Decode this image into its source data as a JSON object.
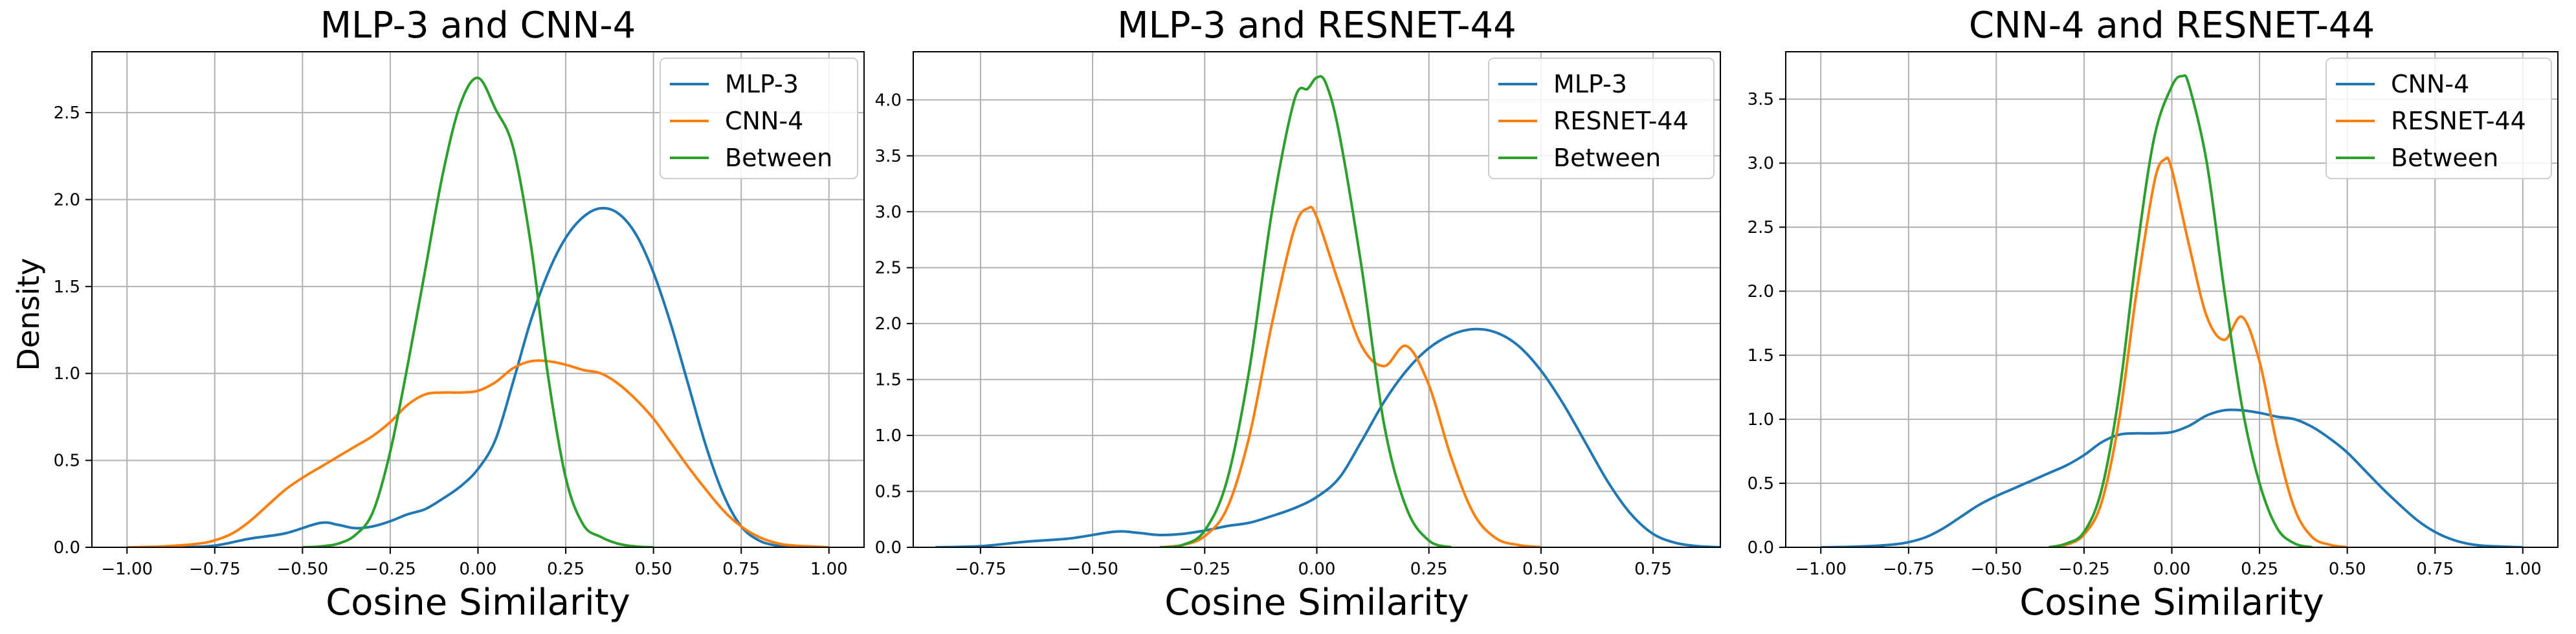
{
  "figure": {
    "ylabel": "Density",
    "colors": {
      "blue": "#1f77b4",
      "orange": "#ff7f0e",
      "green": "#2ca02c",
      "grid": "#b0b0b0",
      "legend_border": "#cccccc"
    }
  },
  "chart_data": [
    {
      "type": "line",
      "title": "MLP-3 and CNN-4",
      "xlabel": "Cosine Similarity",
      "ylabel": "Density",
      "xlim": [
        -1.1,
        1.1
      ],
      "ylim": [
        0,
        2.85
      ],
      "xticks": [
        -1.0,
        -0.75,
        -0.5,
        -0.25,
        0.0,
        0.25,
        0.5,
        0.75,
        1.0
      ],
      "xtick_labels": [
        "−1.00",
        "−0.75",
        "−0.50",
        "−0.25",
        "0.00",
        "0.25",
        "0.50",
        "0.75",
        "1.00"
      ],
      "yticks": [
        0.0,
        0.5,
        1.0,
        1.5,
        2.0,
        2.5
      ],
      "ytick_labels": [
        "0.0",
        "0.5",
        "1.0",
        "1.5",
        "2.0",
        "2.5"
      ],
      "grid": true,
      "legend_position": "top-right",
      "series": [
        {
          "name": "MLP-3",
          "color": "#1f77b4",
          "x": [
            -0.85,
            -0.75,
            -0.65,
            -0.55,
            -0.45,
            -0.4,
            -0.35,
            -0.3,
            -0.25,
            -0.2,
            -0.15,
            -0.1,
            -0.05,
            0.0,
            0.05,
            0.1,
            0.15,
            0.2,
            0.25,
            0.3,
            0.35,
            0.4,
            0.45,
            0.5,
            0.55,
            0.6,
            0.65,
            0.7,
            0.75,
            0.8,
            0.85,
            0.9
          ],
          "y": [
            0.0,
            0.01,
            0.05,
            0.08,
            0.14,
            0.13,
            0.11,
            0.12,
            0.15,
            0.19,
            0.22,
            0.28,
            0.35,
            0.45,
            0.62,
            0.95,
            1.3,
            1.58,
            1.78,
            1.9,
            1.95,
            1.92,
            1.8,
            1.58,
            1.28,
            0.93,
            0.58,
            0.3,
            0.12,
            0.04,
            0.01,
            0.0
          ]
        },
        {
          "name": "CNN-4",
          "color": "#ff7f0e",
          "x": [
            -1.0,
            -0.9,
            -0.8,
            -0.75,
            -0.7,
            -0.65,
            -0.6,
            -0.55,
            -0.5,
            -0.45,
            -0.4,
            -0.35,
            -0.3,
            -0.25,
            -0.2,
            -0.15,
            -0.1,
            -0.05,
            0.0,
            0.05,
            0.1,
            0.15,
            0.2,
            0.25,
            0.3,
            0.35,
            0.4,
            0.45,
            0.5,
            0.55,
            0.6,
            0.65,
            0.7,
            0.75,
            0.8,
            0.85,
            0.9,
            1.0
          ],
          "y": [
            0.0,
            0.005,
            0.02,
            0.04,
            0.08,
            0.15,
            0.24,
            0.33,
            0.4,
            0.46,
            0.52,
            0.58,
            0.64,
            0.72,
            0.82,
            0.88,
            0.89,
            0.89,
            0.9,
            0.95,
            1.03,
            1.07,
            1.07,
            1.05,
            1.02,
            1.0,
            0.94,
            0.85,
            0.74,
            0.6,
            0.46,
            0.33,
            0.21,
            0.12,
            0.06,
            0.025,
            0.01,
            0.0
          ]
        },
        {
          "name": "Between",
          "color": "#2ca02c",
          "x": [
            -0.5,
            -0.45,
            -0.4,
            -0.35,
            -0.3,
            -0.25,
            -0.2,
            -0.15,
            -0.1,
            -0.05,
            0.0,
            0.05,
            0.1,
            0.15,
            0.2,
            0.25,
            0.3,
            0.35,
            0.4,
            0.45,
            0.5
          ],
          "y": [
            0.0,
            0.005,
            0.02,
            0.07,
            0.2,
            0.55,
            1.05,
            1.6,
            2.15,
            2.55,
            2.7,
            2.52,
            2.3,
            1.75,
            0.98,
            0.4,
            0.13,
            0.06,
            0.02,
            0.005,
            0.0
          ]
        }
      ]
    },
    {
      "type": "line",
      "title": "MLP-3 and RESNET-44",
      "xlabel": "Cosine Similarity",
      "ylabel": "",
      "xlim": [
        -0.9,
        0.9
      ],
      "ylim": [
        0,
        4.43
      ],
      "xticks": [
        -0.75,
        -0.5,
        -0.25,
        0.0,
        0.25,
        0.5,
        0.75
      ],
      "xtick_labels": [
        "−0.75",
        "−0.50",
        "−0.25",
        "0.00",
        "0.25",
        "0.50",
        "0.75"
      ],
      "yticks": [
        0.0,
        0.5,
        1.0,
        1.5,
        2.0,
        2.5,
        3.0,
        3.5,
        4.0
      ],
      "ytick_labels": [
        "0.0",
        "0.5",
        "1.0",
        "1.5",
        "2.0",
        "2.5",
        "3.0",
        "3.5",
        "4.0"
      ],
      "grid": true,
      "legend_position": "top-right",
      "series": [
        {
          "name": "MLP-3",
          "color": "#1f77b4",
          "x": [
            -0.85,
            -0.75,
            -0.65,
            -0.55,
            -0.45,
            -0.4,
            -0.35,
            -0.3,
            -0.25,
            -0.2,
            -0.15,
            -0.1,
            -0.05,
            0.0,
            0.05,
            0.1,
            0.15,
            0.2,
            0.25,
            0.3,
            0.35,
            0.4,
            0.45,
            0.5,
            0.55,
            0.6,
            0.65,
            0.7,
            0.75,
            0.8,
            0.85,
            0.9
          ],
          "y": [
            0.0,
            0.01,
            0.05,
            0.08,
            0.14,
            0.13,
            0.11,
            0.12,
            0.15,
            0.19,
            0.22,
            0.28,
            0.35,
            0.45,
            0.62,
            0.95,
            1.3,
            1.58,
            1.78,
            1.9,
            1.95,
            1.92,
            1.8,
            1.58,
            1.28,
            0.93,
            0.58,
            0.3,
            0.12,
            0.04,
            0.01,
            0.0
          ]
        },
        {
          "name": "RESNET-44",
          "color": "#ff7f0e",
          "x": [
            -0.35,
            -0.3,
            -0.25,
            -0.2,
            -0.15,
            -0.1,
            -0.05,
            -0.02,
            0.0,
            0.05,
            0.1,
            0.15,
            0.2,
            0.25,
            0.3,
            0.35,
            0.4,
            0.45,
            0.5
          ],
          "y": [
            0.0,
            0.02,
            0.1,
            0.35,
            1.0,
            2.0,
            2.85,
            3.03,
            2.95,
            2.35,
            1.8,
            1.62,
            1.8,
            1.45,
            0.8,
            0.3,
            0.08,
            0.02,
            0.0
          ]
        },
        {
          "name": "Between",
          "color": "#2ca02c",
          "x": [
            -0.35,
            -0.3,
            -0.25,
            -0.2,
            -0.15,
            -0.1,
            -0.05,
            -0.02,
            0.0,
            0.02,
            0.05,
            0.1,
            0.15,
            0.2,
            0.25,
            0.3
          ],
          "y": [
            0.0,
            0.02,
            0.15,
            0.6,
            1.6,
            3.0,
            4.0,
            4.1,
            4.2,
            4.15,
            3.7,
            2.5,
            1.1,
            0.35,
            0.06,
            0.0
          ]
        }
      ]
    },
    {
      "type": "line",
      "title": "CNN-4 and RESNET-44",
      "xlabel": "Cosine Similarity",
      "ylabel": "",
      "xlim": [
        -1.1,
        1.1
      ],
      "ylim": [
        0,
        3.87
      ],
      "xticks": [
        -1.0,
        -0.75,
        -0.5,
        -0.25,
        0.0,
        0.25,
        0.5,
        0.75,
        1.0
      ],
      "xtick_labels": [
        "−1.00",
        "−0.75",
        "−0.50",
        "−0.25",
        "0.00",
        "0.25",
        "0.50",
        "0.75",
        "1.00"
      ],
      "yticks": [
        0.0,
        0.5,
        1.0,
        1.5,
        2.0,
        2.5,
        3.0,
        3.5
      ],
      "ytick_labels": [
        "0.0",
        "0.5",
        "1.0",
        "1.5",
        "2.0",
        "2.5",
        "3.0",
        "3.5"
      ],
      "grid": true,
      "legend_position": "top-right",
      "series": [
        {
          "name": "CNN-4",
          "color": "#1f77b4",
          "x": [
            -1.0,
            -0.9,
            -0.8,
            -0.75,
            -0.7,
            -0.65,
            -0.6,
            -0.55,
            -0.5,
            -0.45,
            -0.4,
            -0.35,
            -0.3,
            -0.25,
            -0.2,
            -0.15,
            -0.1,
            -0.05,
            0.0,
            0.05,
            0.1,
            0.15,
            0.2,
            0.25,
            0.3,
            0.35,
            0.4,
            0.45,
            0.5,
            0.55,
            0.6,
            0.65,
            0.7,
            0.75,
            0.8,
            0.85,
            0.9,
            1.0
          ],
          "y": [
            0.0,
            0.005,
            0.02,
            0.04,
            0.08,
            0.15,
            0.24,
            0.33,
            0.4,
            0.46,
            0.52,
            0.58,
            0.64,
            0.72,
            0.82,
            0.88,
            0.89,
            0.89,
            0.9,
            0.95,
            1.03,
            1.07,
            1.07,
            1.05,
            1.02,
            1.0,
            0.94,
            0.85,
            0.74,
            0.6,
            0.46,
            0.33,
            0.21,
            0.12,
            0.06,
            0.025,
            0.01,
            0.0
          ]
        },
        {
          "name": "RESNET-44",
          "color": "#ff7f0e",
          "x": [
            -0.35,
            -0.3,
            -0.25,
            -0.2,
            -0.15,
            -0.1,
            -0.05,
            -0.02,
            0.0,
            0.05,
            0.1,
            0.15,
            0.2,
            0.25,
            0.3,
            0.35,
            0.4,
            0.45,
            0.5
          ],
          "y": [
            0.0,
            0.02,
            0.1,
            0.35,
            1.0,
            2.0,
            2.85,
            3.03,
            2.95,
            2.35,
            1.8,
            1.62,
            1.8,
            1.45,
            0.8,
            0.3,
            0.08,
            0.02,
            0.0
          ]
        },
        {
          "name": "Between",
          "color": "#2ca02c",
          "x": [
            -0.35,
            -0.3,
            -0.25,
            -0.2,
            -0.15,
            -0.1,
            -0.05,
            0.0,
            0.03,
            0.05,
            0.1,
            0.15,
            0.2,
            0.25,
            0.3,
            0.35,
            0.4
          ],
          "y": [
            0.0,
            0.03,
            0.12,
            0.45,
            1.2,
            2.3,
            3.2,
            3.6,
            3.68,
            3.6,
            3.0,
            2.0,
            1.1,
            0.5,
            0.15,
            0.03,
            0.0
          ]
        }
      ]
    }
  ]
}
